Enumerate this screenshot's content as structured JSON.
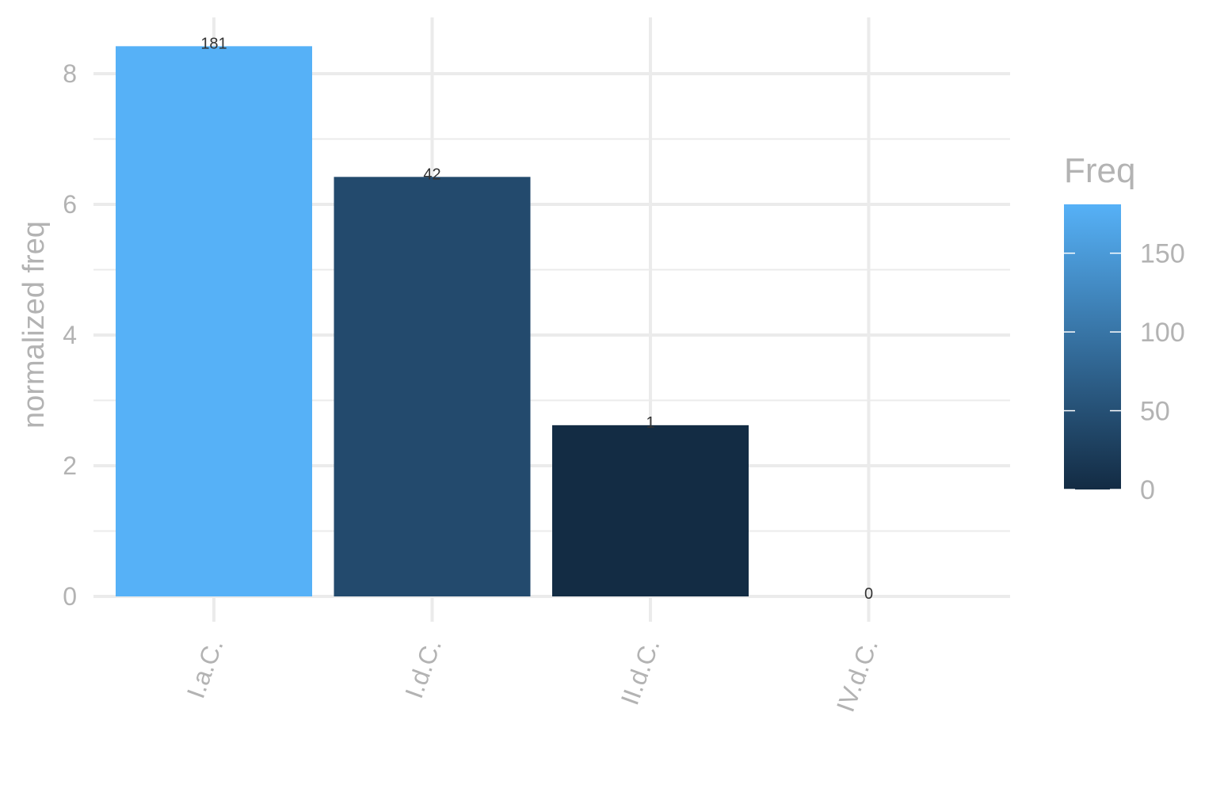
{
  "chart_data": {
    "type": "bar",
    "title": "",
    "xlabel": "",
    "ylabel": "normalized freq",
    "categories": [
      "I.a.C.",
      "I.d.C.",
      "II.d.C.",
      "IV.d.C."
    ],
    "values": [
      8.42,
      6.42,
      2.62,
      0
    ],
    "freq": [
      181,
      42,
      1,
      0
    ],
    "bar_labels": [
      "181",
      "42",
      "1",
      "0"
    ],
    "ylim": [
      0,
      8.8
    ],
    "yticks": [
      0,
      2,
      4,
      6,
      8
    ],
    "grid": true,
    "legend": {
      "title": "Freq",
      "placement": "right",
      "min": 0,
      "max": 181,
      "ticks": [
        0,
        50,
        100,
        150
      ],
      "tick_labels": [
        "0",
        "50",
        "100",
        "150"
      ],
      "color_low": "#132b43",
      "color_high": "#56b1f7"
    }
  }
}
